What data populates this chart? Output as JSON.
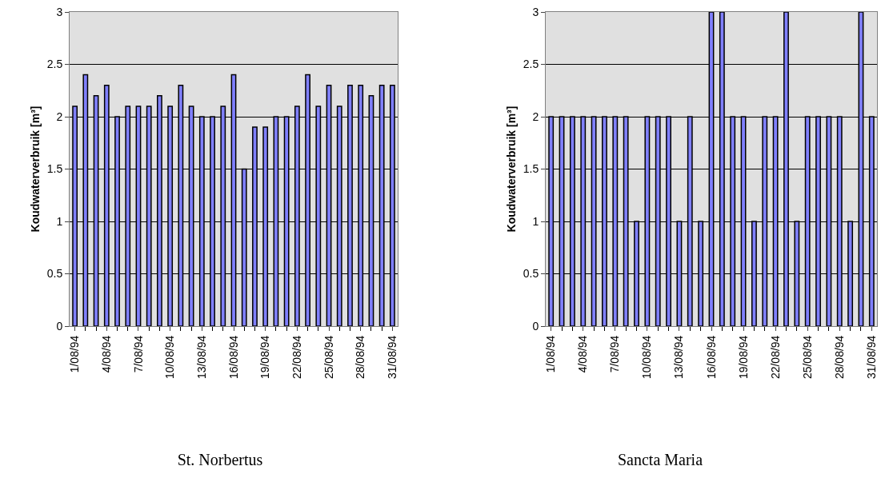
{
  "chart_data": [
    {
      "type": "bar",
      "title": "St. Norbertus",
      "ylabel": "Koudwaterverbruik [m³]",
      "categories": [
        "1/08/94",
        null,
        null,
        "4/08/94",
        null,
        null,
        "7/08/94",
        null,
        null,
        "10/08/94",
        null,
        null,
        "13/08/94",
        null,
        null,
        "16/08/94",
        null,
        null,
        "19/08/94",
        null,
        null,
        "22/08/94",
        null,
        null,
        "25/08/94",
        null,
        null,
        "28/08/94",
        null,
        null,
        "31/08/94"
      ],
      "values": [
        2.1,
        2.4,
        2.2,
        2.3,
        2.0,
        2.1,
        2.1,
        2.1,
        2.2,
        2.1,
        2.3,
        2.1,
        2.0,
        2.0,
        2.1,
        2.4,
        1.5,
        1.9,
        1.9,
        2.0,
        2.0,
        2.1,
        2.4,
        2.1,
        2.3,
        2.1,
        2.3,
        2.3,
        2.2,
        2.3,
        2.3
      ],
      "color": "#8080ff",
      "ylim": [
        0,
        3
      ],
      "yticks": [
        0,
        0.5,
        1,
        1.5,
        2,
        2.5,
        3
      ],
      "grid": "y"
    },
    {
      "type": "bar",
      "title": "Sancta Maria",
      "ylabel": "Koudwaterverbruik [m³]",
      "categories": [
        "1/08/94",
        null,
        null,
        "4/08/94",
        null,
        null,
        "7/08/94",
        null,
        null,
        "10/08/94",
        null,
        null,
        "13/08/94",
        null,
        null,
        "16/08/94",
        null,
        null,
        "19/08/94",
        null,
        null,
        "22/08/94",
        null,
        null,
        "25/08/94",
        null,
        null,
        "28/08/94",
        null,
        null,
        "31/08/94"
      ],
      "values": [
        2,
        2,
        2,
        2,
        2,
        2,
        2,
        2,
        1,
        2,
        2,
        2,
        1,
        2,
        1,
        3,
        3,
        2,
        2,
        1,
        2,
        2,
        3,
        1,
        2,
        2,
        2,
        2,
        1,
        3,
        2
      ],
      "color": "#8080ff",
      "ylim": [
        0,
        3
      ],
      "yticks": [
        0,
        0.5,
        1,
        1.5,
        2,
        2.5,
        3
      ],
      "grid": "y"
    }
  ]
}
